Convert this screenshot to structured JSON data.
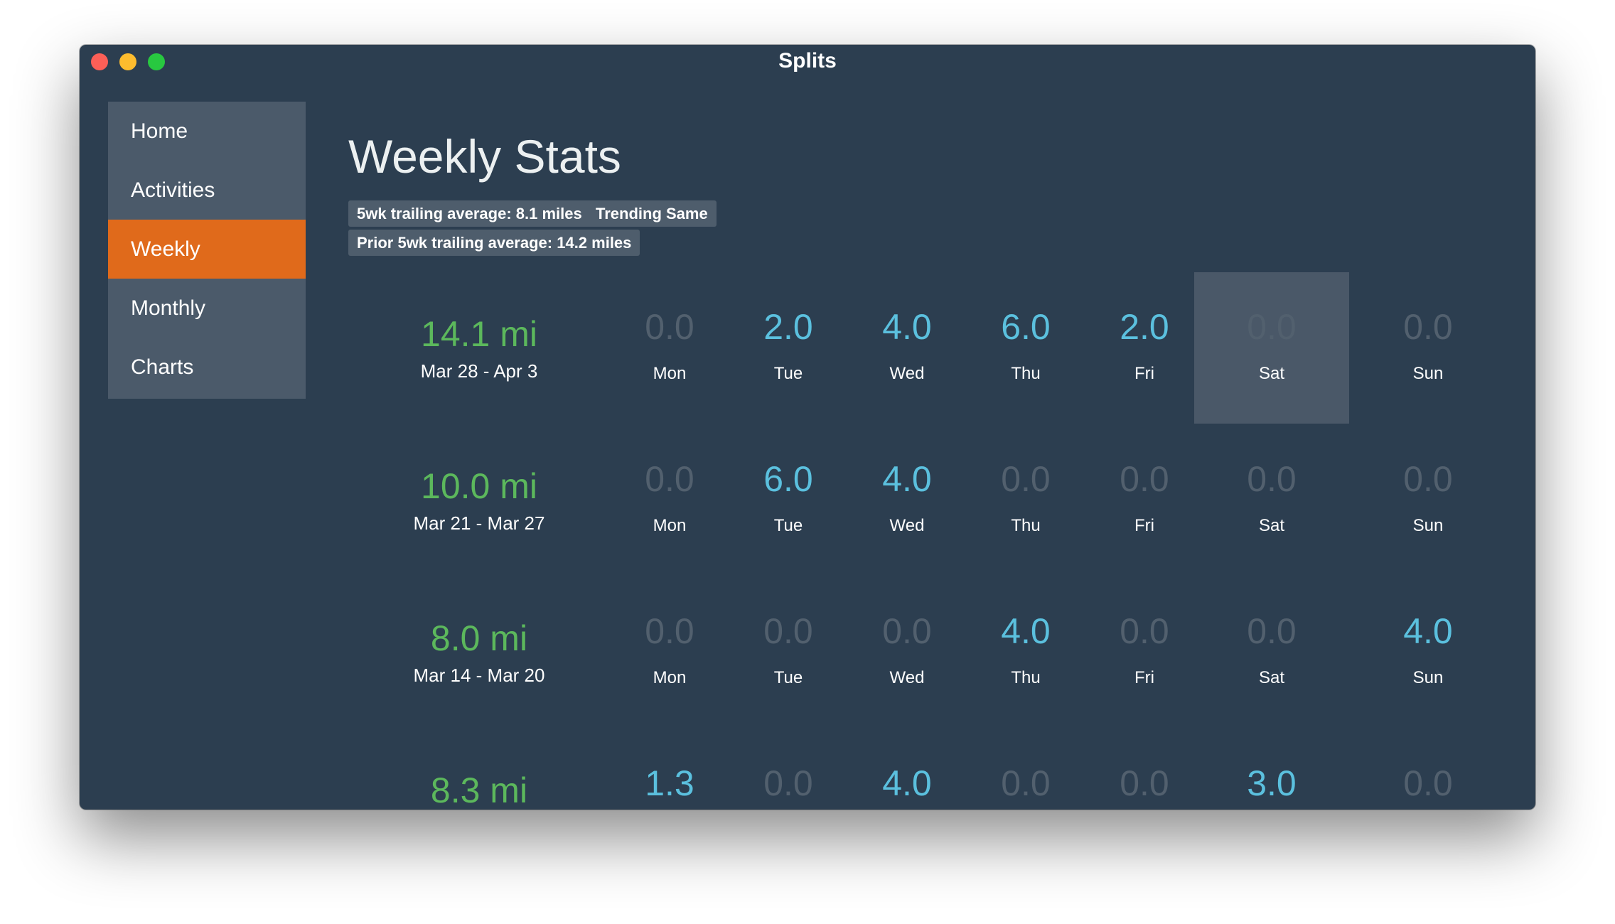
{
  "window": {
    "title": "Splits"
  },
  "sidebar": {
    "items": [
      {
        "label": "Home"
      },
      {
        "label": "Activities"
      },
      {
        "label": "Weekly"
      },
      {
        "label": "Monthly"
      },
      {
        "label": "Charts"
      }
    ],
    "active": "Weekly"
  },
  "main": {
    "title": "Weekly Stats",
    "badges": [
      "5wk trailing average: 8.1 miles",
      "Trending Same",
      "Prior 5wk trailing average: 14.2 miles"
    ]
  },
  "weeks": [
    {
      "total": "14.1 mi",
      "range": "Mar 28 - Apr 3",
      "days": [
        {
          "value": "0.0",
          "name": "Mon"
        },
        {
          "value": "2.0",
          "name": "Tue"
        },
        {
          "value": "4.0",
          "name": "Wed"
        },
        {
          "value": "6.0",
          "name": "Thu"
        },
        {
          "value": "2.0",
          "name": "Fri"
        },
        {
          "value": "0.0",
          "name": "Sat"
        },
        {
          "value": "0.0",
          "name": "Sun"
        }
      ]
    },
    {
      "total": "10.0 mi",
      "range": "Mar 21 - Mar 27",
      "days": [
        {
          "value": "0.0",
          "name": "Mon"
        },
        {
          "value": "6.0",
          "name": "Tue"
        },
        {
          "value": "4.0",
          "name": "Wed"
        },
        {
          "value": "0.0",
          "name": "Thu"
        },
        {
          "value": "0.0",
          "name": "Fri"
        },
        {
          "value": "0.0",
          "name": "Sat"
        },
        {
          "value": "0.0",
          "name": "Sun"
        }
      ]
    },
    {
      "total": "8.0 mi",
      "range": "Mar 14 - Mar 20",
      "days": [
        {
          "value": "0.0",
          "name": "Mon"
        },
        {
          "value": "0.0",
          "name": "Tue"
        },
        {
          "value": "0.0",
          "name": "Wed"
        },
        {
          "value": "4.0",
          "name": "Thu"
        },
        {
          "value": "0.0",
          "name": "Fri"
        },
        {
          "value": "0.0",
          "name": "Sat"
        },
        {
          "value": "4.0",
          "name": "Sun"
        }
      ]
    },
    {
      "total": "8.3 mi",
      "days": [
        {
          "value": "1.3"
        },
        {
          "value": "0.0"
        },
        {
          "value": "4.0"
        },
        {
          "value": "0.0"
        },
        {
          "value": "0.0"
        },
        {
          "value": "3.0"
        },
        {
          "value": "0.0"
        }
      ]
    }
  ],
  "colors": {
    "background": "#2c3e50",
    "sidebar": "#4b5a6a",
    "active_nav": "#e06a1b",
    "week_total": "#5cb85c",
    "day_active": "#5bc0de",
    "day_zero": "#52606e",
    "today_highlight": "#4a5868"
  }
}
